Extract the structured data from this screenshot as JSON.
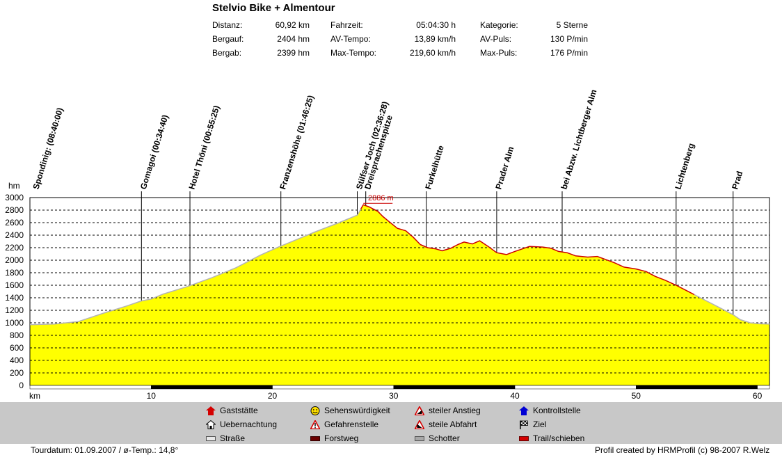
{
  "header": {
    "title": "Stelvio Bike + Almentour",
    "stats": [
      {
        "label": "Distanz:",
        "value": "60,92 km"
      },
      {
        "label": "Bergauf:",
        "value": "2404 hm"
      },
      {
        "label": "Bergab:",
        "value": "2399 hm"
      },
      {
        "label": "Fahrzeit:",
        "value": "05:04:30 h"
      },
      {
        "label": "AV-Tempo:",
        "value": "13,89 km/h"
      },
      {
        "label": "Max-Tempo:",
        "value": "219,60 km/h"
      },
      {
        "label": "Kategorie:",
        "value": "5 Sterne"
      },
      {
        "label": "AV-Puls:",
        "value": "130 P/min"
      },
      {
        "label": "Max-Puls:",
        "value": "176 P/min"
      }
    ]
  },
  "chart_data": {
    "type": "area",
    "xlabel": "km",
    "ylabel": "hm",
    "xlim": [
      0,
      61
    ],
    "ylim": [
      0,
      3000
    ],
    "x_ticks": [
      "10",
      "20",
      "30",
      "40",
      "50",
      "60"
    ],
    "y_ticks": [
      "0",
      "200",
      "400",
      "600",
      "800",
      "1000",
      "1200",
      "1400",
      "1600",
      "1800",
      "2000",
      "2200",
      "2400",
      "2600",
      "2800",
      "3000"
    ],
    "grid": true,
    "max_label": "2886 m",
    "max_point": {
      "x": 27.5,
      "y": 2886
    },
    "profile": [
      [
        0,
        970
      ],
      [
        2,
        980
      ],
      [
        4,
        1020
      ],
      [
        6,
        1150
      ],
      [
        8,
        1270
      ],
      [
        9.2,
        1350
      ],
      [
        10,
        1380
      ],
      [
        11,
        1460
      ],
      [
        13,
        1580
      ],
      [
        15,
        1720
      ],
      [
        17,
        1880
      ],
      [
        19,
        2080
      ],
      [
        20.5,
        2210
      ],
      [
        21.5,
        2290
      ],
      [
        23.5,
        2450
      ],
      [
        25.5,
        2600
      ],
      [
        27,
        2720
      ],
      [
        27.5,
        2886
      ],
      [
        28,
        2850
      ],
      [
        28.7,
        2780
      ],
      [
        29.1,
        2700
      ],
      [
        29.6,
        2620
      ],
      [
        30.3,
        2510
      ],
      [
        31,
        2470
      ],
      [
        31.6,
        2370
      ],
      [
        32.2,
        2250
      ],
      [
        32.8,
        2200
      ],
      [
        33.5,
        2180
      ],
      [
        34,
        2150
      ],
      [
        34.7,
        2190
      ],
      [
        35.3,
        2250
      ],
      [
        35.8,
        2290
      ],
      [
        36.5,
        2260
      ],
      [
        37.1,
        2310
      ],
      [
        37.8,
        2220
      ],
      [
        38.5,
        2120
      ],
      [
        39.3,
        2090
      ],
      [
        40,
        2140
      ],
      [
        40.6,
        2180
      ],
      [
        41.2,
        2220
      ],
      [
        42.3,
        2210
      ],
      [
        43,
        2190
      ],
      [
        43.6,
        2140
      ],
      [
        44.3,
        2120
      ],
      [
        45,
        2070
      ],
      [
        46,
        2050
      ],
      [
        46.8,
        2060
      ],
      [
        47.5,
        2010
      ],
      [
        48.2,
        1960
      ],
      [
        49,
        1890
      ],
      [
        50,
        1860
      ],
      [
        50.8,
        1820
      ],
      [
        51.6,
        1740
      ],
      [
        52.4,
        1680
      ],
      [
        53.3,
        1600
      ],
      [
        54.2,
        1510
      ],
      [
        55.2,
        1410
      ],
      [
        56.2,
        1310
      ],
      [
        57.2,
        1210
      ],
      [
        58,
        1130
      ],
      [
        58.6,
        1050
      ],
      [
        59.4,
        1000
      ],
      [
        60.2,
        985
      ],
      [
        61,
        980
      ]
    ],
    "red_segments": [
      [
        27.3,
        54.8
      ]
    ],
    "waypoints": [
      {
        "x": 0,
        "label": "Spondinig: (08:40:00)",
        "line": false
      },
      {
        "x": 9.2,
        "label": "Gomagoi (00:34:40)",
        "line": true
      },
      {
        "x": 13.2,
        "label": "Hotel Thöni (00:55:25)",
        "line": true
      },
      {
        "x": 20.7,
        "label": "Franzenshöhe (01:46:25)",
        "line": true
      },
      {
        "x": 27.0,
        "label": "Stilfser Joch (02:36:28)",
        "line": true
      },
      {
        "x": 27.7,
        "label": "Dreisprachenspitze",
        "line": true
      },
      {
        "x": 32.7,
        "label": "Furkelhütte",
        "line": true
      },
      {
        "x": 38.5,
        "label": "Prader Alm",
        "line": true
      },
      {
        "x": 43.9,
        "label": "bei Abzw. Lichtberger Alm",
        "line": true
      },
      {
        "x": 53.3,
        "label": "Lichtenberg",
        "line": true
      },
      {
        "x": 58.0,
        "label": "Prad",
        "line": true
      }
    ]
  },
  "legend": {
    "items": [
      {
        "label": "Gaststätte",
        "icon": "gasthouse-icon"
      },
      {
        "label": "Uebernachtung",
        "icon": "lodging-icon"
      },
      {
        "label": "Straße",
        "icon": "road-swatch"
      },
      {
        "label": "Sehenswürdigkeit",
        "icon": "smiley-icon"
      },
      {
        "label": "Gefahrenstelle",
        "icon": "warning-icon"
      },
      {
        "label": "Forstweg",
        "icon": "forest-road-swatch"
      },
      {
        "label": "steiler Anstieg",
        "icon": "steep-climb-icon"
      },
      {
        "label": "steile Abfahrt",
        "icon": "steep-descent-icon"
      },
      {
        "label": "Schotter",
        "icon": "gravel-swatch"
      },
      {
        "label": "Kontrollstelle",
        "icon": "checkpoint-icon"
      },
      {
        "label": "Ziel",
        "icon": "finish-flag-icon"
      },
      {
        "label": "Trail/schieben",
        "icon": "trail-swatch"
      }
    ]
  },
  "footer": {
    "left": "Tourdatum: 01.09.2007  /  ø-Temp.: 14,8°",
    "right": "Profil created by HRMProfil (c) 98-2007 R.Welz"
  },
  "colors": {
    "fill": "#ffff00",
    "road_line": "#b4b4b4",
    "trail_line": "#cc0000",
    "forest_road": "#6b0000",
    "gravel": "#a8a8a8",
    "legend_bg": "#c8c8c8"
  }
}
